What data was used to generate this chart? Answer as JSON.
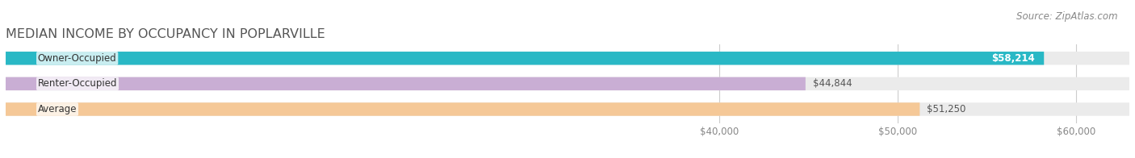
{
  "title": "MEDIAN INCOME BY OCCUPANCY IN POPLARVILLE",
  "source": "Source: ZipAtlas.com",
  "categories": [
    "Owner-Occupied",
    "Renter-Occupied",
    "Average"
  ],
  "values": [
    58214,
    44844,
    51250
  ],
  "labels": [
    "$58,214",
    "$44,844",
    "$51,250"
  ],
  "bar_colors": [
    "#29b8c5",
    "#c9aed4",
    "#f5c897"
  ],
  "bar_bg_color": "#ebebeb",
  "xlim_min": 0,
  "xlim_max": 63000,
  "xticks": [
    40000,
    50000,
    60000
  ],
  "xtick_labels": [
    "$40,000",
    "$50,000",
    "$60,000"
  ],
  "title_fontsize": 11.5,
  "label_fontsize": 8.5,
  "source_fontsize": 8.5,
  "category_fontsize": 8.5,
  "bar_height": 0.52,
  "background_color": "#ffffff",
  "label_inside_color": "white",
  "label_outside_color": "#555555",
  "label_inside_threshold": 58000
}
